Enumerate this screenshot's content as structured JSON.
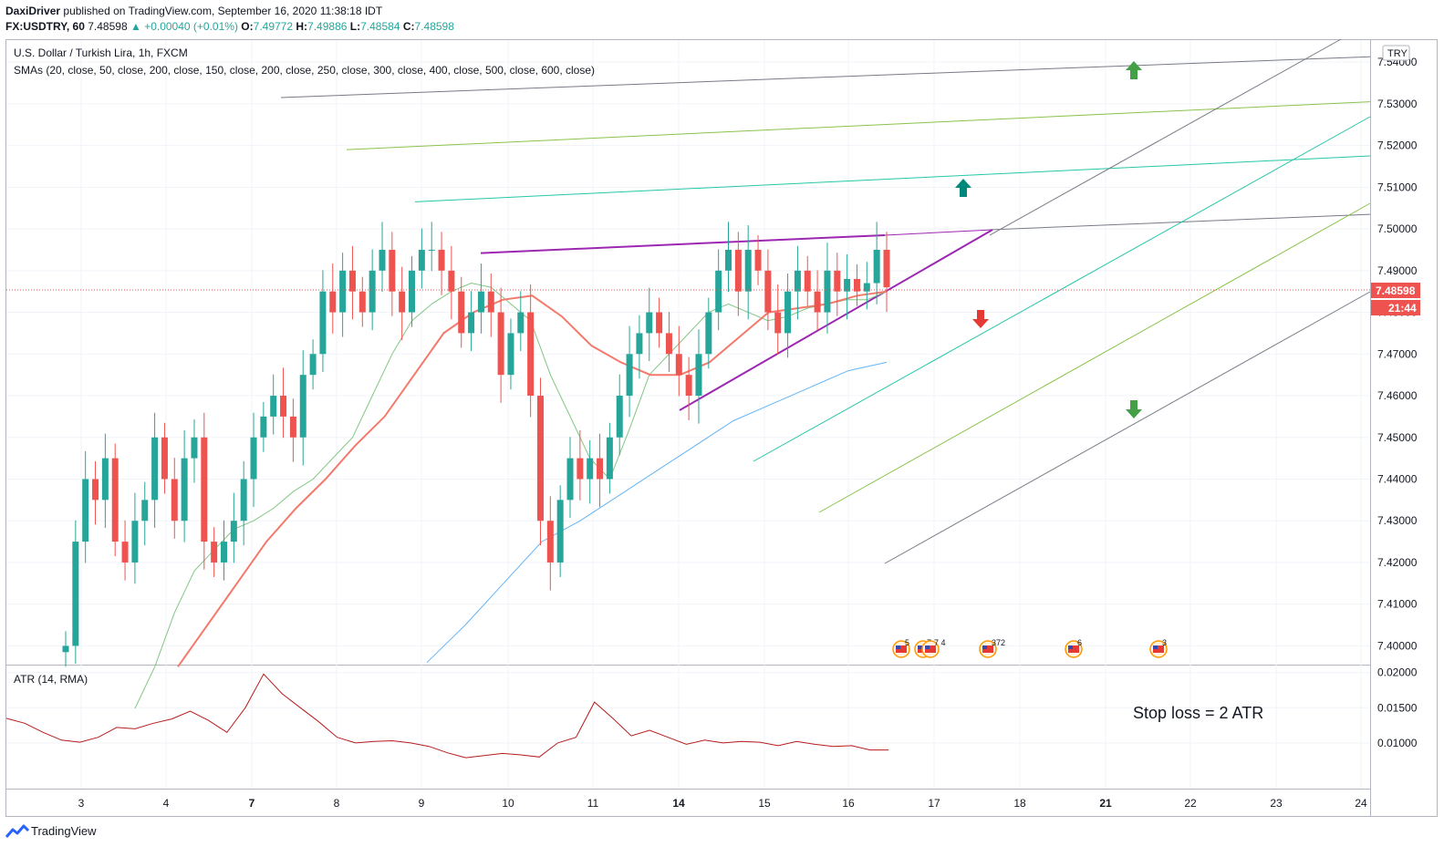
{
  "header": {
    "publisher": "DaxiDriver",
    "published_text": "published on TradingView.com, September 16, 2020 11:38:18 IDT",
    "symbol_line": "FX:USDTRY, 60",
    "last_price": "7.48598",
    "change": "▲ +0.00040 (+0.01%)",
    "o_label": "O:",
    "o": "7.49772",
    "h_label": "H:",
    "h": "7.49886",
    "l_label": "L:",
    "l": "7.48584",
    "c_label": "C:",
    "c": "7.48598"
  },
  "legend": {
    "title": "U.S. Dollar / Turkish Lira, 1h, FXCM",
    "sma": "SMAs (20, close, 50, close, 200, close, 150, close, 200, close, 250, close, 300, close, 400, close, 500, close, 600, close)"
  },
  "currency_badge": "TRY",
  "price_tag": "7.48598",
  "countdown_tag": "21:44",
  "atr_label": "ATR (14, RMA)",
  "annotation": "Stop loss = 2 ATR",
  "footer": {
    "brand": "TradingView"
  },
  "event_badges": [
    "5",
    "7",
    "7 4",
    "372",
    "6",
    "3"
  ],
  "colors": {
    "up": "#26a69a",
    "down": "#ef5350",
    "sma20": "#81c784",
    "sma50": "#f4796b",
    "sma200": "#64b5f6",
    "atr": "#b71c1c",
    "triangle": "#9c27b0",
    "arrow_up_dark": "#00897b",
    "arrow_up": "#43a047",
    "arrow_down_red": "#e53935",
    "arrow_down_green": "#43a047"
  },
  "chart_data": {
    "type": "line",
    "subtype": "candlestick",
    "title": "U.S. Dollar / Turkish Lira, 1h, FXCM",
    "x_ticks": [
      "3",
      "4",
      "7",
      "8",
      "9",
      "10",
      "11",
      "14",
      "15",
      "16",
      "17",
      "18",
      "21",
      "22",
      "23",
      "24"
    ],
    "price_axis": {
      "ticks": [
        "7.54000",
        "7.53000",
        "7.52000",
        "7.51000",
        "7.50000",
        "7.49000",
        "7.48000",
        "7.47000",
        "7.46000",
        "7.45000",
        "7.44000",
        "7.43000",
        "7.42000",
        "7.41000",
        "7.40000"
      ],
      "range": [
        7.3955,
        7.5455
      ]
    },
    "atr_axis": {
      "ticks": [
        "0.02000",
        "0.01500",
        "0.01000"
      ],
      "range": [
        0.0035,
        0.021
      ]
    },
    "price_series_close": [
      7.4,
      7.425,
      7.44,
      7.435,
      7.445,
      7.425,
      7.42,
      7.43,
      7.435,
      7.45,
      7.44,
      7.43,
      7.445,
      7.45,
      7.425,
      7.42,
      7.425,
      7.43,
      7.44,
      7.45,
      7.455,
      7.46,
      7.455,
      7.45,
      7.465,
      7.47,
      7.485,
      7.48,
      7.49,
      7.485,
      7.48,
      7.49,
      7.495,
      7.485,
      7.48,
      7.49,
      7.495,
      7.495,
      7.49,
      7.485,
      7.475,
      7.48,
      7.485,
      7.48,
      7.465,
      7.475,
      7.48,
      7.46,
      7.43,
      7.42,
      7.435,
      7.445,
      7.44,
      7.445,
      7.44,
      7.45,
      7.46,
      7.47,
      7.475,
      7.48,
      7.475,
      7.47,
      7.465,
      7.46,
      7.47,
      7.48,
      7.49,
      7.495,
      7.485,
      7.495,
      7.49,
      7.48,
      7.475,
      7.485,
      7.49,
      7.485,
      7.48,
      7.49,
      7.485,
      7.488,
      7.485,
      7.487,
      7.495,
      7.486
    ],
    "sma20": [
      7.385,
      7.395,
      7.408,
      7.418,
      7.423,
      7.428,
      7.43,
      7.433,
      7.437,
      7.44,
      7.445,
      7.45,
      7.46,
      7.47,
      7.478,
      7.482,
      7.485,
      7.487,
      7.486,
      7.482,
      7.478,
      7.465,
      7.455,
      7.445,
      7.44,
      7.452,
      7.465,
      7.47,
      7.475,
      7.48,
      7.482,
      7.48,
      7.478,
      7.479,
      7.481,
      7.482,
      7.483,
      7.483,
      7.485
    ],
    "sma50": [
      7.395,
      7.405,
      7.415,
      7.425,
      7.433,
      7.44,
      7.448,
      7.455,
      7.465,
      7.475,
      7.48,
      7.483,
      7.484,
      7.479,
      7.472,
      7.468,
      7.465,
      7.465,
      7.468,
      7.474,
      7.48,
      7.481,
      7.482,
      7.484,
      7.485
    ],
    "sma200": [
      7.396,
      7.405,
      7.415,
      7.425,
      7.43,
      7.436,
      7.442,
      7.448,
      7.454,
      7.458,
      7.462,
      7.466,
      7.468
    ],
    "atr": [
      0.0135,
      0.0128,
      0.0115,
      0.0104,
      0.0101,
      0.0108,
      0.0122,
      0.012,
      0.0128,
      0.0134,
      0.0145,
      0.0132,
      0.0115,
      0.015,
      0.0198,
      0.017,
      0.015,
      0.013,
      0.0108,
      0.01,
      0.0102,
      0.0103,
      0.01,
      0.0095,
      0.0086,
      0.0079,
      0.0082,
      0.0085,
      0.0083,
      0.008,
      0.01,
      0.0108,
      0.0158,
      0.0135,
      0.011,
      0.0118,
      0.0108,
      0.0098,
      0.0104,
      0.01,
      0.0102,
      0.0101,
      0.0096,
      0.0102,
      0.0098,
      0.0095,
      0.0096,
      0.009,
      0.009
    ],
    "drawings": {
      "rising_wedge": {
        "upper": [
          [
            7.4942
          ],
          [
            7.4985
          ]
        ],
        "lower": [
          [
            7.4565
          ],
          [
            7.4998
          ]
        ]
      },
      "channels": [
        {
          "color": "#787b86",
          "from": 7.5315,
          "to": 7.5413
        },
        {
          "color": "#8bc34a",
          "from": 7.519,
          "to": 7.5305
        },
        {
          "color": "#26c6a6",
          "from": 7.5065,
          "to": 7.5175
        }
      ]
    }
  }
}
